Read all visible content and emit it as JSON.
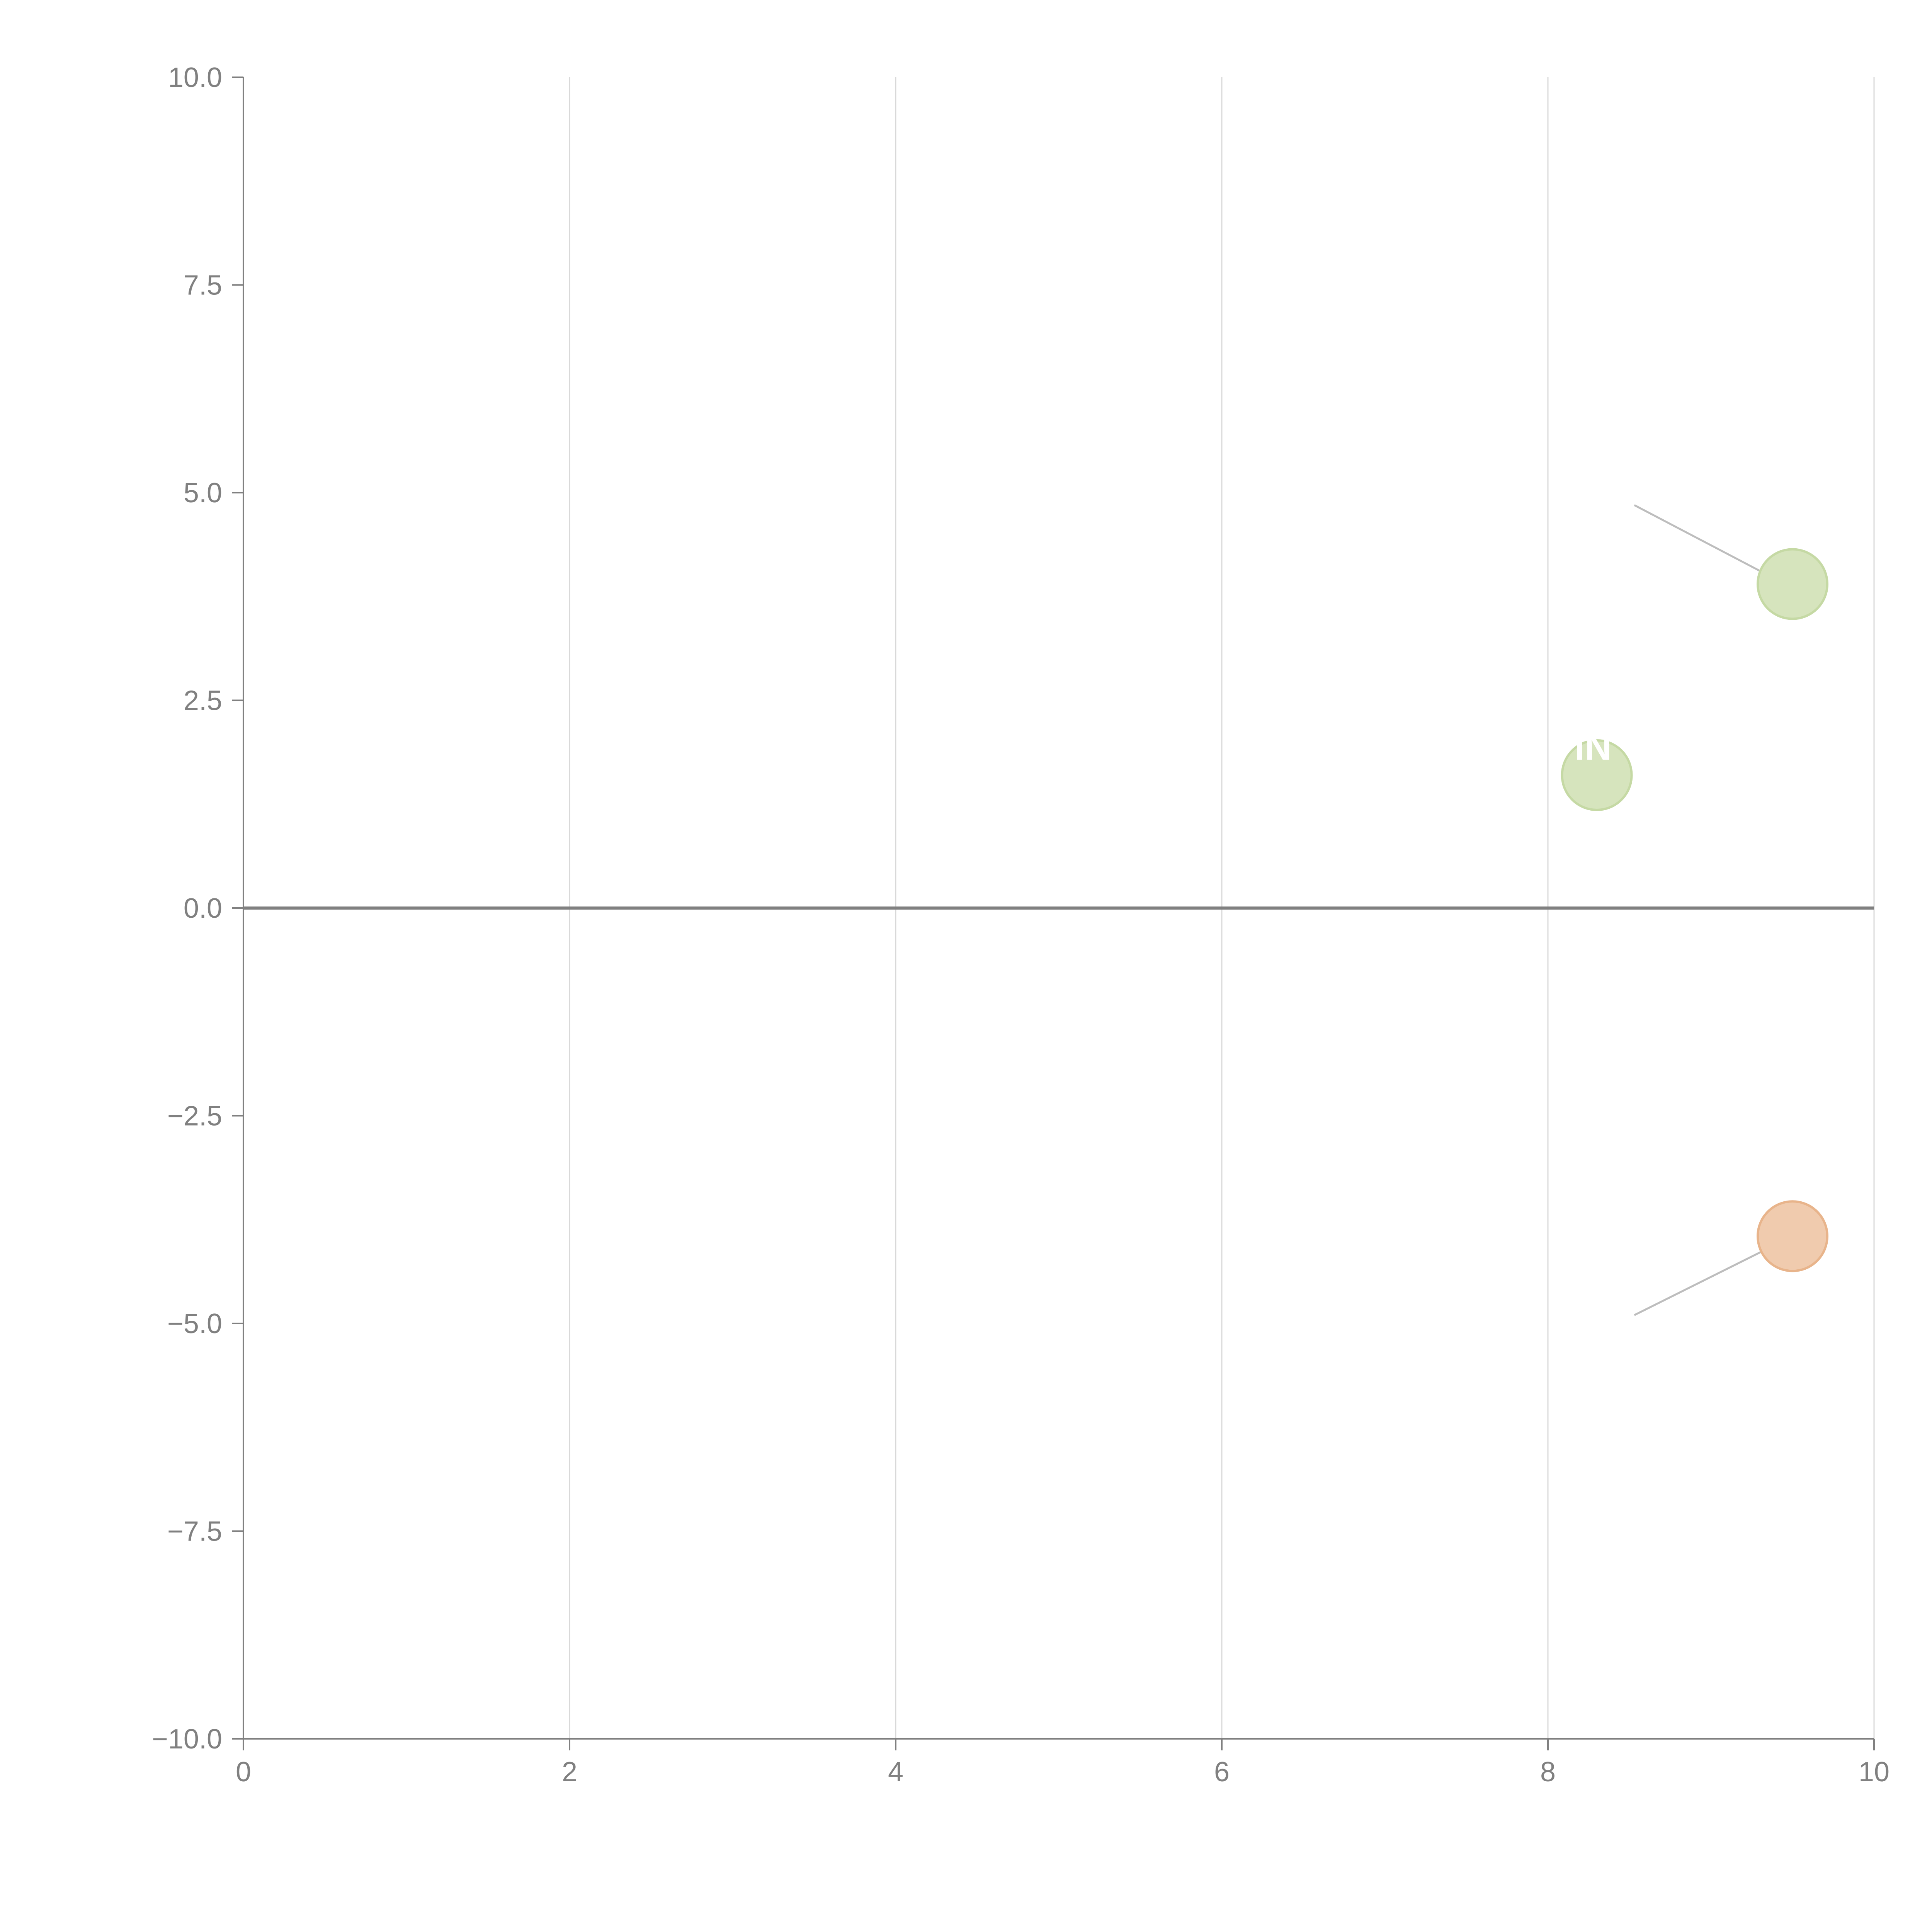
{
  "colors": {
    "axis": "#808080",
    "grid": "#d9d9d9",
    "zero_line": "#808080",
    "leader_line": "#bdbdbd",
    "point_label": "#ffffff"
  },
  "chart_data": {
    "type": "scatter",
    "xlim": [
      0,
      10
    ],
    "ylim": [
      -10,
      10
    ],
    "x_ticks": [
      {
        "value": 0,
        "label": "0"
      },
      {
        "value": 2,
        "label": "2"
      },
      {
        "value": 4,
        "label": "4"
      },
      {
        "value": 6,
        "label": "6"
      },
      {
        "value": 8,
        "label": "8"
      },
      {
        "value": 10,
        "label": "10"
      }
    ],
    "y_ticks": [
      {
        "value": 10,
        "label": "10.0"
      },
      {
        "value": 7.5,
        "label": "7.5"
      },
      {
        "value": 5,
        "label": "5.0"
      },
      {
        "value": 2.5,
        "label": "2.5"
      },
      {
        "value": 0,
        "label": "0.0"
      },
      {
        "value": -2.5,
        "label": "−2.5"
      },
      {
        "value": -5,
        "label": "−5.0"
      },
      {
        "value": -7.5,
        "label": "−7.5"
      },
      {
        "value": -10,
        "label": "−10.0"
      }
    ],
    "grid": "vertical",
    "zero_line": true,
    "points": [
      {
        "x": 9.5,
        "y": 3.9,
        "color": "#d6e4bd",
        "stroke": "#c5d9a4",
        "leader_to": [
          8.53,
          4.85
        ],
        "label": ""
      },
      {
        "x": 8.3,
        "y": 1.6,
        "color": "#d6e4bd",
        "stroke": "#c5d9a4",
        "label": "IN"
      },
      {
        "x": 9.5,
        "y": -3.95,
        "color": "#f0cbae",
        "stroke": "#e8b48b",
        "leader_to": [
          8.53,
          -4.9
        ],
        "label": ""
      }
    ]
  }
}
